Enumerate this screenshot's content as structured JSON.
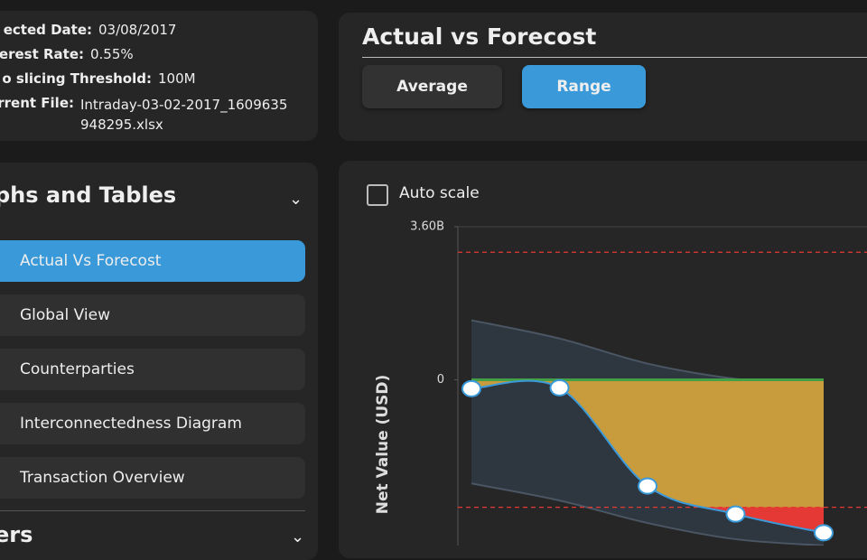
{
  "info": {
    "rows": [
      {
        "label": "ected Date:",
        "value": "03/08/2017"
      },
      {
        "label": "erest Rate:",
        "value": "0.55%"
      },
      {
        "label": "o slicing Threshold:",
        "value": "100M"
      },
      {
        "label": "rrent File:",
        "value": "Intraday-03-02-2017_1609635948295.xlsx"
      }
    ]
  },
  "header": {
    "title": "Actual vs Forecost",
    "options": [
      "Average",
      "Range"
    ],
    "selected": "Range"
  },
  "sidebar": {
    "title": "phs and Tables",
    "items": [
      "Actual Vs Forecost",
      "Global View",
      "Counterparties",
      "Interconnectedness Diagram",
      "Transaction Overview"
    ],
    "active": "Actual Vs Forecost",
    "next_section": "ers"
  },
  "auto_scale": {
    "label": "Auto scale",
    "checked": false
  },
  "chart_data": {
    "type": "range-area",
    "y_label": "Net Value (USD)",
    "categories": [
      null,
      null,
      null,
      null,
      null
    ],
    "forecast": [
      -210000000,
      -190000000,
      -2500000000,
      -3160000000,
      -3600000000
    ],
    "band_upper": [
      1400000000,
      970000000,
      380000000,
      20000000,
      -150000000
    ],
    "band_lower": [
      -2440000000,
      -2840000000,
      -3370000000,
      -3750000000,
      -3900000000
    ],
    "actual": [
      0,
      0,
      0,
      0,
      0
    ],
    "thresholds": [
      3000000000,
      -3000000000
    ],
    "ylim": [
      -3900000000,
      3600000000
    ],
    "yticks": [
      {
        "value": 3600000000,
        "label": "3.60B"
      },
      0
    ],
    "colors": {
      "forecast": "#3a9ad9",
      "band": "#2e3640",
      "fill": "#c89b3c",
      "exceed": "#e53935",
      "actual": "#43a047",
      "threshold": "#e53935"
    }
  }
}
